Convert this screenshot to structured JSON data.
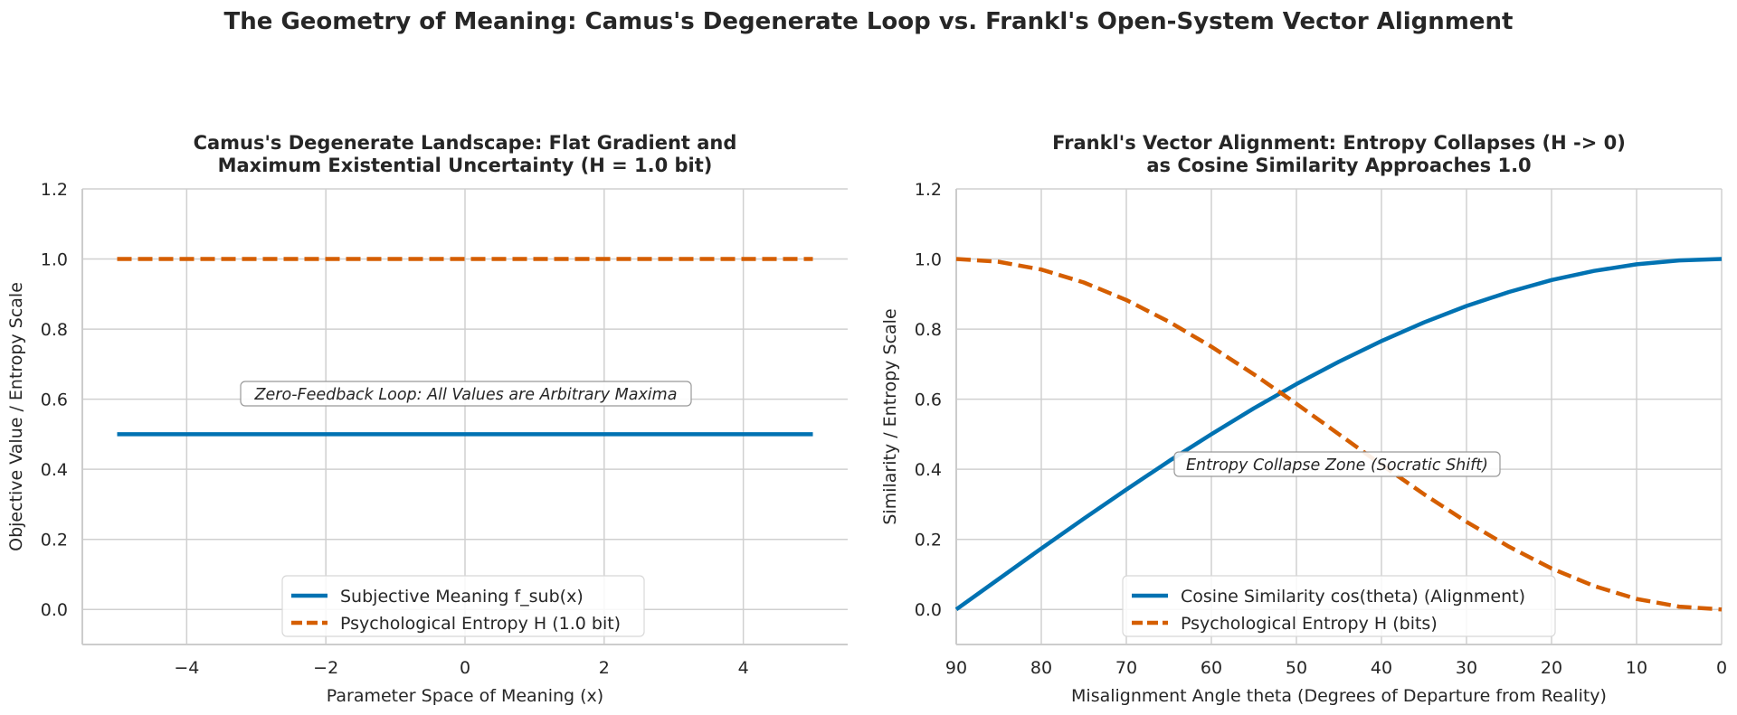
{
  "figure": {
    "suptitle": "The Geometry of Meaning: Camus's Degenerate Loop vs. Frankl's Open-System Vector Alignment"
  },
  "colors": {
    "blue": "#0072b2",
    "orange": "#d55e00",
    "grid": "#d0d0d0",
    "axis": "#cccccc",
    "text": "#262626"
  },
  "chart_data": [
    {
      "type": "line",
      "title": [
        "Camus's Degenerate Landscape: Flat Gradient and",
        "Maximum Existential Uncertainty (H = 1.0 bit)"
      ],
      "xlabel": "Parameter Space of Meaning (x)",
      "ylabel": "Objective Value / Entropy Scale",
      "xlim": [
        -5.5,
        5.5
      ],
      "ylim": [
        -0.1,
        1.2
      ],
      "xticks": [
        -4,
        -2,
        0,
        2,
        4
      ],
      "xtick_labels": [
        "−4",
        "−2",
        "0",
        "2",
        "4"
      ],
      "yticks": [
        0.0,
        0.2,
        0.4,
        0.6,
        0.8,
        1.0,
        1.2
      ],
      "ytick_labels": [
        "0.0",
        "0.2",
        "0.4",
        "0.6",
        "0.8",
        "1.0",
        "1.2"
      ],
      "grid": true,
      "series": [
        {
          "name": "Subjective Meaning f_sub(x)",
          "style": "solid",
          "color": "#0072b2",
          "x": [
            -5,
            5
          ],
          "y": [
            0.5,
            0.5
          ]
        },
        {
          "name": "Psychological Entropy H (1.0 bit)",
          "style": "dashed",
          "color": "#d55e00",
          "x": [
            -5,
            5
          ],
          "y": [
            1.0,
            1.0
          ]
        }
      ],
      "annotation": {
        "text": "Zero-Feedback Loop: All Values are Arbitrary Maxima",
        "x": 0,
        "y": 0.6
      },
      "legend_position": "lower center"
    },
    {
      "type": "line",
      "title": [
        "Frankl's Vector Alignment: Entropy Collapses (H -> 0)",
        "as Cosine Similarity Approaches 1.0"
      ],
      "xlabel": "Misalignment Angle theta (Degrees of Departure from Reality)",
      "ylabel": "Similarity / Entropy Scale",
      "xlim": [
        90,
        0
      ],
      "ylim": [
        -0.1,
        1.2
      ],
      "x_inverted": true,
      "xticks": [
        90,
        80,
        70,
        60,
        50,
        40,
        30,
        20,
        10,
        0
      ],
      "xtick_labels": [
        "90",
        "80",
        "70",
        "60",
        "50",
        "40",
        "30",
        "20",
        "10",
        "0"
      ],
      "yticks": [
        0.0,
        0.2,
        0.4,
        0.6,
        0.8,
        1.0,
        1.2
      ],
      "ytick_labels": [
        "0.0",
        "0.2",
        "0.4",
        "0.6",
        "0.8",
        "1.0",
        "1.2"
      ],
      "grid": true,
      "series": [
        {
          "name": "Cosine Similarity cos(theta) (Alignment)",
          "style": "solid",
          "color": "#0072b2",
          "x": [
            90,
            85,
            80,
            75,
            70,
            65,
            60,
            55,
            50,
            45,
            40,
            35,
            30,
            25,
            20,
            15,
            10,
            5,
            0
          ],
          "y": [
            0.0,
            0.087,
            0.174,
            0.259,
            0.342,
            0.423,
            0.5,
            0.574,
            0.643,
            0.707,
            0.766,
            0.819,
            0.866,
            0.906,
            0.94,
            0.966,
            0.985,
            0.996,
            1.0
          ]
        },
        {
          "name": "Psychological Entropy H (bits)",
          "style": "dashed",
          "color": "#d55e00",
          "x": [
            90,
            85,
            80,
            75,
            70,
            65,
            60,
            55,
            50,
            45,
            40,
            35,
            30,
            25,
            20,
            15,
            10,
            5,
            0
          ],
          "y": [
            1.0,
            0.992,
            0.97,
            0.933,
            0.883,
            0.821,
            0.75,
            0.671,
            0.587,
            0.5,
            0.413,
            0.329,
            0.25,
            0.179,
            0.117,
            0.067,
            0.03,
            0.008,
            0.0
          ]
        }
      ],
      "annotation": {
        "text": "Entropy Collapse Zone (Socratic Shift)",
        "x": 35,
        "y": 0.41
      },
      "legend_position": "lower center"
    }
  ]
}
